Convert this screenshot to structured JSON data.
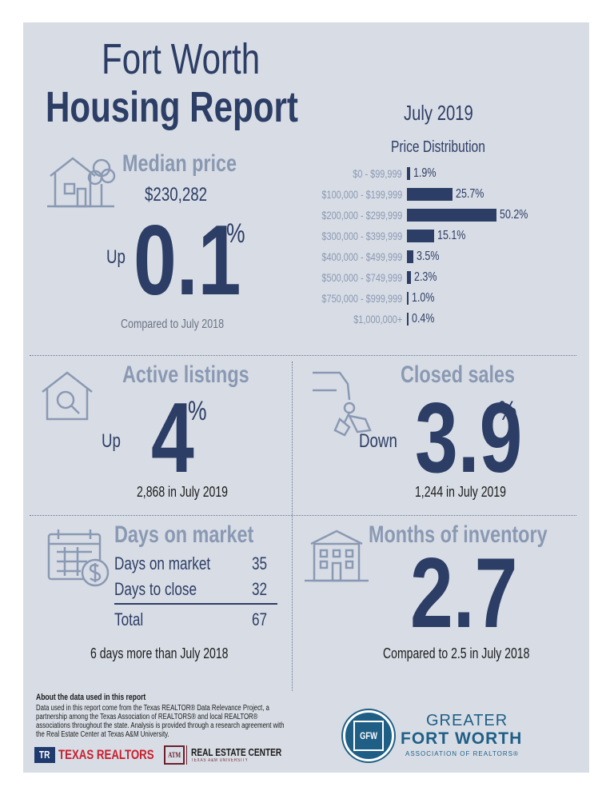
{
  "header": {
    "title_line1": "Fort Worth",
    "title_line2": "Housing Report",
    "period": "July 2019"
  },
  "median": {
    "heading": "Median price",
    "price": "$230,282",
    "direction": "Up",
    "change_value": "0.1",
    "percent_sign": "%",
    "comparison": "Compared to July 2018"
  },
  "price_distribution": {
    "heading": "Price Distribution",
    "chart_data": {
      "type": "bar",
      "orientation": "horizontal",
      "title": "Price Distribution",
      "categories": [
        "$0 - $99,999",
        "$100,000 - $199,999",
        "$200,000 - $299,999",
        "$300,000 - $399,999",
        "$400,000 - $499,999",
        "$500,000 - $749,999",
        "$750,000 - $999,999",
        "$1,000,000+"
      ],
      "values": [
        1.9,
        25.7,
        50.2,
        15.1,
        3.5,
        2.3,
        1.0,
        0.4
      ],
      "labels": [
        "1.9%",
        "25.7%",
        "50.2%",
        "15.1%",
        "3.5%",
        "2.3%",
        "1.0%",
        "0.4%"
      ],
      "unit": "%"
    }
  },
  "active_listings": {
    "heading": "Active listings",
    "direction": "Up",
    "change_value": "4",
    "percent_sign": "%",
    "detail": "2,868 in July 2019"
  },
  "closed_sales": {
    "heading": "Closed sales",
    "direction": "Down",
    "change_value": "3.9",
    "percent_sign": "%",
    "detail": "1,244 in July 2019"
  },
  "days_on_market": {
    "heading": "Days on market",
    "rows": [
      {
        "label": "Days on market",
        "value": "35"
      },
      {
        "label": "Days to close",
        "value": "32"
      }
    ],
    "total_label": "Total",
    "total_value": "67",
    "comparison": "6 days more than July 2018"
  },
  "inventory": {
    "heading": "Months of inventory",
    "value": "2.7",
    "comparison": "Compared to 2.5 in July 2018"
  },
  "footer": {
    "about_title": "About the data used in this report",
    "about_text": "Data used in this report come from the Texas REALTOR® Data Relevance Project, a partnership among the Texas Association of REALTORS® and local REALTOR® associations throughout the state. Analysis is provided through a research agreement with the Real Estate Center at Texas A&M University.",
    "texas_realtors": "TEXAS REALTORS",
    "tr_mark": "TR",
    "am_mark": "ATM",
    "rec_name": "REAL ESTATE CENTER",
    "rec_sub": "TEXAS A&M UNIVERSITY",
    "gfw_line1": "GREATER",
    "gfw_line2": "FORT WORTH",
    "gfw_line3": "ASSOCIATION OF REALTORS®",
    "gfw_mark": "GFW"
  },
  "colors": {
    "navy": "#2d3e66",
    "light_heading": "#8a99b3",
    "background": "#d8dde5",
    "texas_red": "#c8202e",
    "aggie_maroon": "#6b1f2a",
    "gfw_teal": "#1f5f86"
  }
}
